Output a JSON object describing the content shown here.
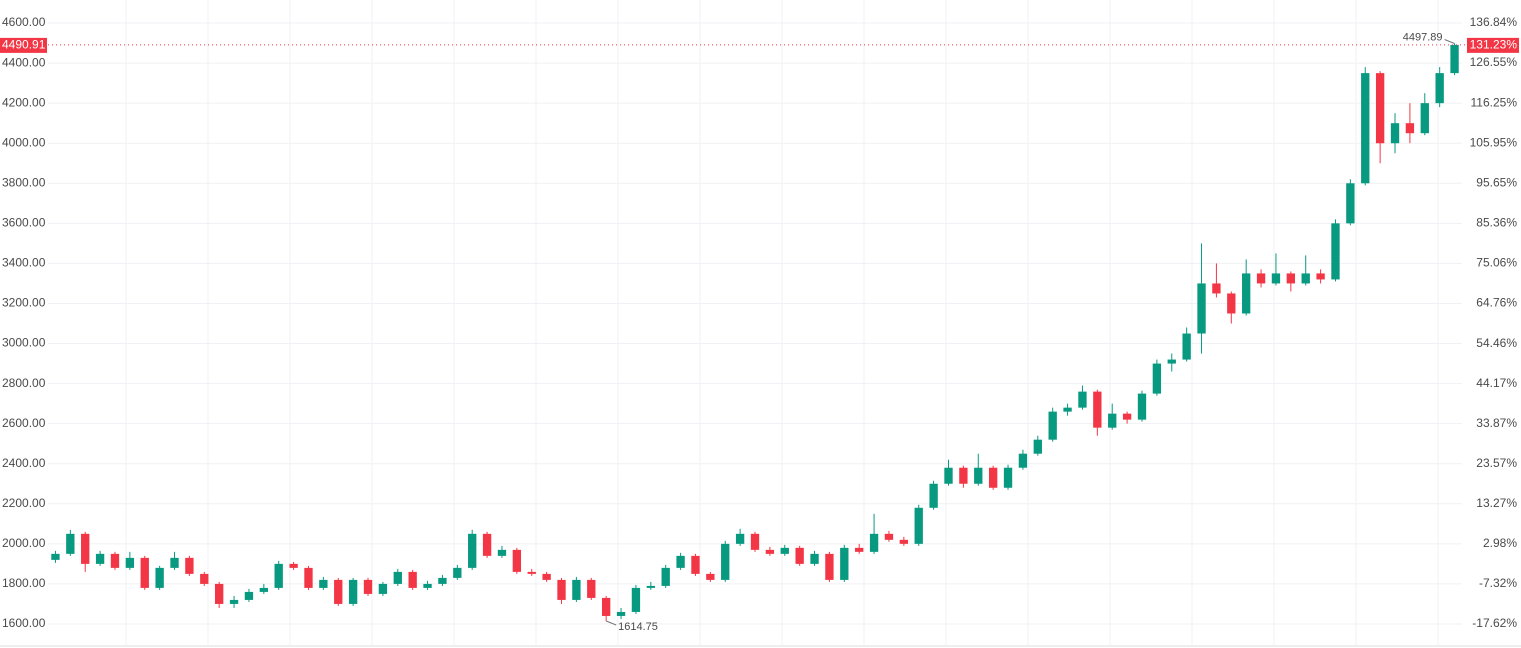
{
  "chart_data": {
    "type": "candlestick",
    "up_color": "#089981",
    "down_color": "#f23645",
    "candles": {
      "open": [
        1920,
        1950,
        2050,
        1900,
        1950,
        1880,
        1930,
        1780,
        1880,
        1930,
        1850,
        1800,
        1700,
        1720,
        1760,
        1780,
        1900,
        1880,
        1780,
        1820,
        1700,
        1820,
        1750,
        1800,
        1860,
        1780,
        1800,
        1830,
        1880,
        2050,
        1940,
        1970,
        1860,
        1850,
        1820,
        1720,
        1820,
        1730,
        1640,
        1660,
        1780,
        1790,
        1880,
        1940,
        1850,
        1820,
        2000,
        2050,
        1970,
        1950,
        1980,
        1900,
        1950,
        1820,
        1980,
        1960,
        2050,
        2020,
        2000,
        2180,
        2300,
        2380,
        2300,
        2380,
        2280,
        2380,
        2450,
        2520,
        2660,
        2680,
        2760,
        2580,
        2650,
        2620,
        2750,
        2900,
        2920,
        3050,
        3300,
        3250,
        3150,
        3350,
        3300,
        3350,
        3300,
        3350,
        3320,
        3600,
        3800,
        4350,
        4000,
        4100,
        4050,
        4200,
        4350
      ],
      "high": [
        1965,
        2070,
        2060,
        1965,
        1960,
        1960,
        1940,
        1890,
        1960,
        1940,
        1860,
        1810,
        1740,
        1775,
        1800,
        1915,
        1910,
        1890,
        1835,
        1830,
        1830,
        1830,
        1810,
        1875,
        1870,
        1815,
        1845,
        1895,
        2070,
        2060,
        1990,
        1980,
        1875,
        1860,
        1830,
        1835,
        1830,
        1740,
        1680,
        1795,
        1810,
        1895,
        1955,
        1950,
        1860,
        2015,
        2075,
        2060,
        1985,
        1995,
        1990,
        1965,
        1960,
        1995,
        2000,
        2150,
        2065,
        2035,
        2195,
        2315,
        2420,
        2390,
        2450,
        2390,
        2395,
        2470,
        2540,
        2680,
        2700,
        2790,
        2770,
        2700,
        2660,
        2765,
        2920,
        2950,
        3080,
        3500,
        3400,
        3260,
        3420,
        3370,
        3450,
        3360,
        3440,
        3370,
        3620,
        3820,
        4380,
        4360,
        4150,
        4200,
        4250,
        4380,
        4497.89
      ],
      "low": [
        1905,
        1940,
        1860,
        1890,
        1870,
        1870,
        1770,
        1770,
        1870,
        1840,
        1790,
        1680,
        1680,
        1710,
        1750,
        1770,
        1870,
        1770,
        1770,
        1690,
        1690,
        1740,
        1740,
        1790,
        1770,
        1770,
        1790,
        1820,
        1870,
        1930,
        1930,
        1850,
        1840,
        1810,
        1700,
        1710,
        1720,
        1614.75,
        1625,
        1650,
        1770,
        1780,
        1870,
        1840,
        1810,
        1810,
        1990,
        1960,
        1940,
        1940,
        1890,
        1890,
        1810,
        1810,
        1950,
        1950,
        2010,
        1990,
        1990,
        2170,
        2290,
        2280,
        2290,
        2270,
        2270,
        2370,
        2440,
        2510,
        2640,
        2670,
        2540,
        2570,
        2600,
        2610,
        2740,
        2860,
        2910,
        2950,
        3230,
        3100,
        3140,
        3280,
        3290,
        3260,
        3290,
        3300,
        3310,
        3590,
        3790,
        3900,
        3950,
        4000,
        4040,
        4180,
        4340
      ],
      "close": [
        1950,
        2050,
        1900,
        1950,
        1880,
        1930,
        1780,
        1880,
        1930,
        1850,
        1800,
        1700,
        1720,
        1760,
        1780,
        1900,
        1880,
        1780,
        1820,
        1700,
        1820,
        1750,
        1800,
        1860,
        1780,
        1800,
        1830,
        1880,
        2050,
        1940,
        1970,
        1860,
        1850,
        1820,
        1720,
        1820,
        1730,
        1640,
        1660,
        1780,
        1790,
        1880,
        1940,
        1850,
        1820,
        2000,
        2050,
        1970,
        1950,
        1980,
        1900,
        1950,
        1820,
        1980,
        1960,
        2050,
        2020,
        2000,
        2180,
        2300,
        2380,
        2300,
        2380,
        2280,
        2380,
        2450,
        2520,
        2660,
        2680,
        2760,
        2580,
        2650,
        2620,
        2750,
        2900,
        2920,
        3050,
        3300,
        3250,
        3150,
        3350,
        3300,
        3350,
        3300,
        3350,
        3320,
        3600,
        3800,
        4350,
        4000,
        4100,
        4050,
        4200,
        4350,
        4490.91
      ]
    },
    "ylim": [
      1495,
      4715
    ],
    "yticks": [
      {
        "value": 1600,
        "label": "1600.00"
      },
      {
        "value": 1800,
        "label": "1800.00"
      },
      {
        "value": 2000,
        "label": "2000.00"
      },
      {
        "value": 2200,
        "label": "2200.00"
      },
      {
        "value": 2400,
        "label": "2400.00"
      },
      {
        "value": 2600,
        "label": "2600.00"
      },
      {
        "value": 2800,
        "label": "2800.00"
      },
      {
        "value": 3000,
        "label": "3000.00"
      },
      {
        "value": 3200,
        "label": "3200.00"
      },
      {
        "value": 3400,
        "label": "3400.00"
      },
      {
        "value": 3600,
        "label": "3600.00"
      },
      {
        "value": 3800,
        "label": "3800.00"
      },
      {
        "value": 4000,
        "label": "4000.00"
      },
      {
        "value": 4200,
        "label": "4200.00"
      },
      {
        "value": 4400,
        "label": "4400.00"
      },
      {
        "value": 4600,
        "label": "4600.00"
      }
    ],
    "y2lim": [
      -23.0,
      142.76
    ],
    "y2ticks": [
      {
        "value": -17.62,
        "label": "-17.62%"
      },
      {
        "value": -7.32,
        "label": "-7.32%"
      },
      {
        "value": 2.98,
        "label": "2.98%"
      },
      {
        "value": 13.27,
        "label": "13.27%"
      },
      {
        "value": 23.57,
        "label": "23.57%"
      },
      {
        "value": 33.87,
        "label": "33.87%"
      },
      {
        "value": 44.17,
        "label": "44.17%"
      },
      {
        "value": 54.46,
        "label": "54.46%"
      },
      {
        "value": 64.76,
        "label": "64.76%"
      },
      {
        "value": 75.06,
        "label": "75.06%"
      },
      {
        "value": 85.36,
        "label": "85.36%"
      },
      {
        "value": 95.65,
        "label": "95.65%"
      },
      {
        "value": 105.95,
        "label": "105.95%"
      },
      {
        "value": 116.25,
        "label": "116.25%"
      },
      {
        "value": 126.55,
        "label": "126.55%"
      },
      {
        "value": 136.84,
        "label": "136.84%"
      }
    ],
    "last_percent": {
      "value": 131.23,
      "label": "131.23%"
    },
    "grid": true
  }
}
